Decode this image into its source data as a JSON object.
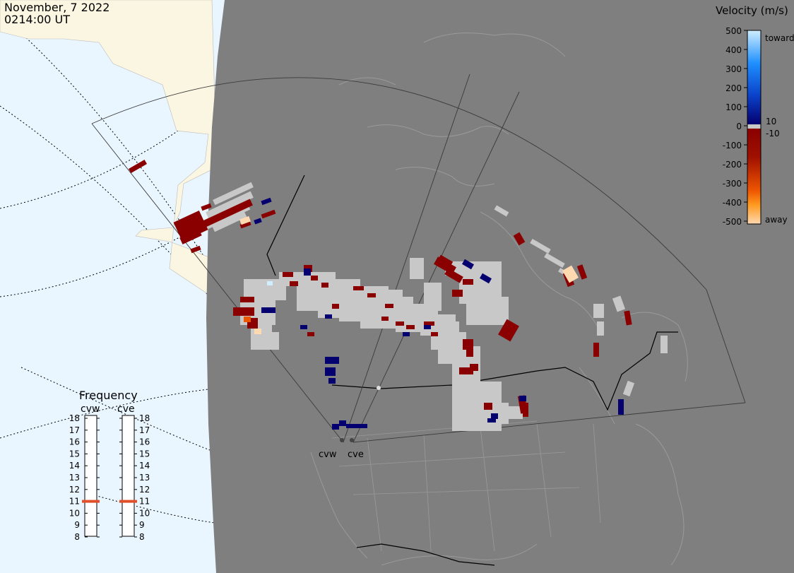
{
  "header": {
    "date": "November, 7 2022",
    "time": "0214:00 UT"
  },
  "legend": {
    "title": "Velocity (m/s)",
    "ticks": [
      "500",
      "400",
      "300",
      "200",
      "100",
      "0",
      "-100",
      "-200",
      "-300",
      "-400",
      "-500"
    ],
    "toward_label": "toward",
    "away_label": "away",
    "ground_scatter_upper": "10",
    "ground_scatter_lower": "-10",
    "colors": {
      "toward_high": "#cfeeff",
      "toward_mid": "#1f8fff",
      "toward_low": "#05006f",
      "away_low": "#8a0000",
      "away_mid": "#ee5500",
      "away_high": "#ffd9b0",
      "ground_scatter": "#c8c8c8"
    }
  },
  "frequency": {
    "title": "Frequency",
    "radars": [
      {
        "code": "cvw",
        "value": 11
      },
      {
        "code": "cve",
        "value": 11
      }
    ],
    "ticks": [
      "18",
      "17",
      "16",
      "15",
      "14",
      "13",
      "12",
      "11",
      "10",
      "9",
      "8"
    ]
  },
  "stations": [
    {
      "code": "cvw"
    },
    {
      "code": "cve"
    }
  ],
  "map": {
    "ocean_color": "#eaf6ff",
    "land_day_color": "#fbf6e1",
    "night_color": "#7f7f7f"
  }
}
